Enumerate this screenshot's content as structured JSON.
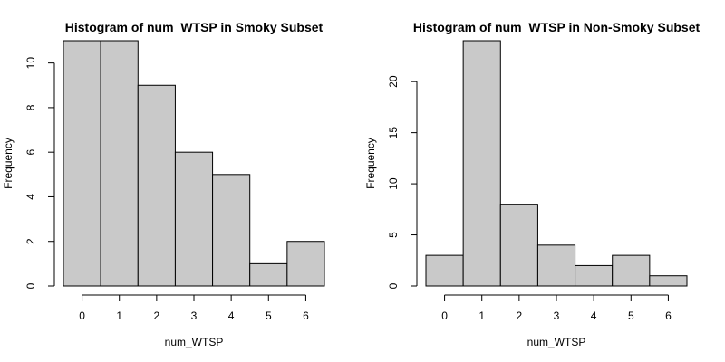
{
  "chart_data": [
    {
      "type": "bar",
      "title": "Histogram of num_WTSP in Smoky Subset",
      "xlabel": "num_WTSP",
      "ylabel": "Frequency",
      "categories": [
        "0",
        "1",
        "2",
        "3",
        "4",
        "5",
        "6"
      ],
      "bin_edges": [
        -0.5,
        0.5,
        1.5,
        2.5,
        3.5,
        4.5,
        5.5,
        6.5
      ],
      "values": [
        11,
        11,
        9,
        6,
        5,
        1,
        2
      ],
      "xticks": [
        "0",
        "1",
        "2",
        "3",
        "4",
        "5",
        "6"
      ],
      "yticks": [
        "0",
        "2",
        "4",
        "6",
        "8",
        "10"
      ],
      "ylim": [
        0,
        11
      ],
      "xlim": [
        -0.5,
        6.5
      ],
      "bar_color": "#c9c9c9",
      "grid": false
    },
    {
      "type": "bar",
      "title": "Histogram of num_WTSP in Non-Smoky Subset",
      "xlabel": "num_WTSP",
      "ylabel": "Frequency",
      "categories": [
        "0",
        "1",
        "2",
        "3",
        "4",
        "5",
        "6"
      ],
      "bin_edges": [
        -0.5,
        0.5,
        1.5,
        2.5,
        3.5,
        4.5,
        5.5,
        6.5
      ],
      "values": [
        3,
        24,
        8,
        4,
        2,
        3,
        1
      ],
      "xticks": [
        "0",
        "1",
        "2",
        "3",
        "4",
        "5",
        "6"
      ],
      "yticks": [
        "0",
        "5",
        "10",
        "15",
        "20"
      ],
      "ylim": [
        0,
        24
      ],
      "xlim": [
        -0.5,
        6.5
      ],
      "bar_color": "#c9c9c9",
      "grid": false
    }
  ]
}
